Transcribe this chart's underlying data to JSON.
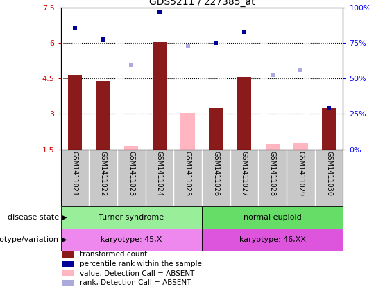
{
  "title": "GDS5211 / 227385_at",
  "samples": [
    "GSM1411021",
    "GSM1411022",
    "GSM1411023",
    "GSM1411024",
    "GSM1411025",
    "GSM1411026",
    "GSM1411027",
    "GSM1411028",
    "GSM1411029",
    "GSM1411030"
  ],
  "bar_values": [
    4.65,
    4.4,
    1.65,
    6.05,
    3.05,
    3.25,
    4.55,
    1.72,
    1.75,
    3.25
  ],
  "bar_absent": [
    false,
    false,
    true,
    false,
    true,
    false,
    false,
    true,
    true,
    false
  ],
  "rank_values": [
    6.6,
    6.15,
    5.05,
    7.3,
    5.85,
    6.0,
    6.45,
    4.65,
    4.85,
    3.25
  ],
  "rank_absent": [
    false,
    false,
    true,
    false,
    true,
    false,
    false,
    true,
    true,
    false
  ],
  "ylim_left": [
    1.5,
    7.5
  ],
  "ylim_right": [
    0,
    100
  ],
  "yticks_left": [
    1.5,
    3.0,
    4.5,
    6.0,
    7.5
  ],
  "yticks_right": [
    0,
    25,
    50,
    75,
    100
  ],
  "ytick_labels_left": [
    "1.5",
    "3",
    "4.5",
    "6",
    "7.5"
  ],
  "ytick_labels_right": [
    "0%",
    "25%",
    "50%",
    "75%",
    "100%"
  ],
  "hlines": [
    3.0,
    4.5,
    6.0
  ],
  "bar_color_present": "#8B1A1A",
  "bar_color_absent": "#FFB6C1",
  "rank_color_present": "#000099",
  "rank_color_absent": "#AAAADD",
  "disease_state_groups": [
    {
      "label": "Turner syndrome",
      "start": 0,
      "end": 4,
      "color": "#99EE99"
    },
    {
      "label": "normal euploid",
      "start": 5,
      "end": 9,
      "color": "#66DD66"
    }
  ],
  "genotype_groups": [
    {
      "label": "karyotype: 45,X",
      "start": 0,
      "end": 4,
      "color": "#EE88EE"
    },
    {
      "label": "karyotype: 46,XX",
      "start": 5,
      "end": 9,
      "color": "#DD55DD"
    }
  ],
  "row_labels": [
    "disease state",
    "genotype/variation"
  ],
  "legend_items": [
    {
      "label": "transformed count",
      "color": "#8B1A1A"
    },
    {
      "label": "percentile rank within the sample",
      "color": "#000099"
    },
    {
      "label": "value, Detection Call = ABSENT",
      "color": "#FFB6C1"
    },
    {
      "label": "rank, Detection Call = ABSENT",
      "color": "#AAAADD"
    }
  ]
}
